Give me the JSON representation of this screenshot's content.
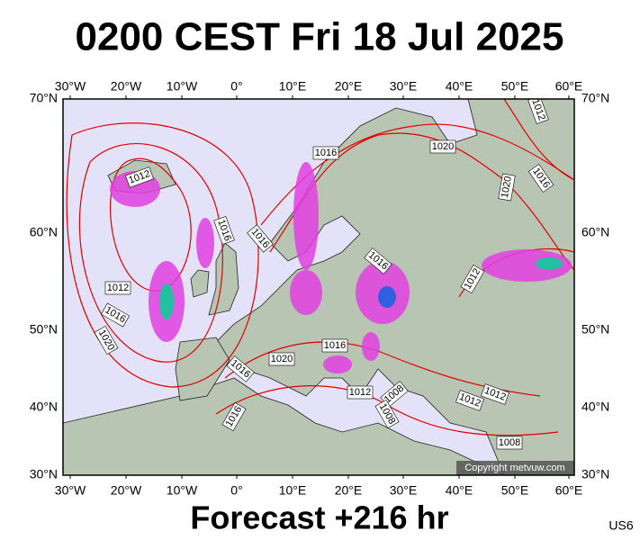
{
  "header": {
    "title": "0200 CEST Fri 18 Jul 2025"
  },
  "map": {
    "lon_labels": [
      "30°W",
      "20°W",
      "10°W",
      "0°",
      "10°E",
      "20°E",
      "30°E",
      "40°E",
      "50°E",
      "60°E"
    ],
    "lat_labels": [
      "70°N",
      "60°N",
      "50°N",
      "40°N",
      "30°N"
    ],
    "isobar_labels": [
      "1012",
      "1016",
      "1020",
      "1012",
      "1016",
      "1020",
      "1016",
      "1016",
      "1016",
      "1012",
      "1016",
      "1020",
      "1012",
      "1016",
      "1020",
      "1016",
      "1016",
      "1012",
      "1008",
      "1008",
      "1012",
      "1012",
      "1008"
    ],
    "copyright": "Copyright metvuw.com"
  },
  "footer": {
    "forecast": "Forecast +216 hr",
    "code": "US6"
  }
}
